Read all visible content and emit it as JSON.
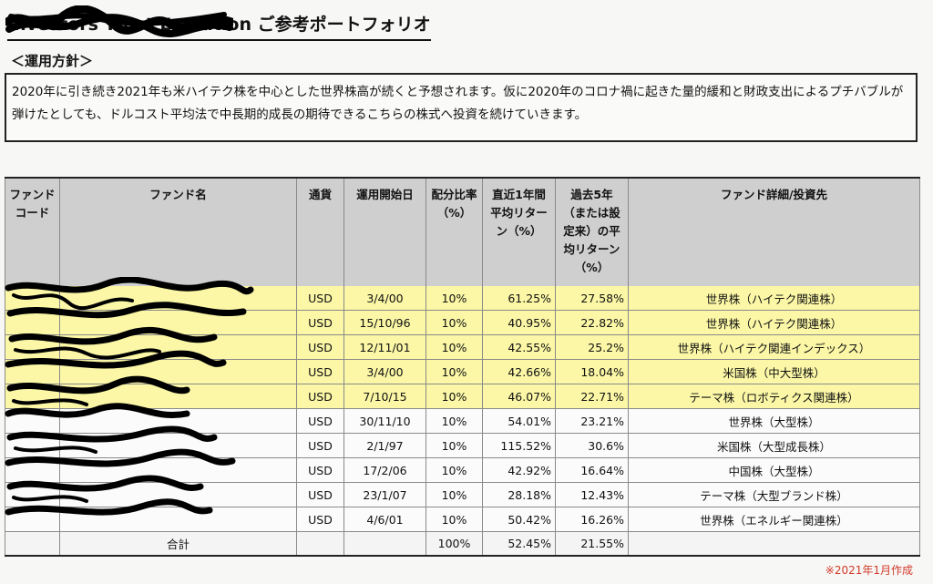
{
  "header": {
    "title": "Investors Trust Evolution ご参考ポートフォリオ"
  },
  "policy": {
    "label": "＜運用方針＞",
    "text": "2020年に引き続き2021年も米ハイテク株を中心とした世界株高が続くと予想されます。仮に2020年のコロナ禍に起きた量的緩和と財政支出によるプチバブルが弾けたとしても、ドルコスト平均法で中長期的成長の期待できるこちらの株式へ投資を続けていきます。"
  },
  "table": {
    "headers": {
      "code": "ファンドコード",
      "name": "ファンド名",
      "currency": "通貨",
      "start": "運用開始日",
      "alloc": "配分比率（%）",
      "ret1y": "直近1年間平均リターン（%）",
      "ret5y": "過去5年（または設定来）の平均リターン（%）",
      "detail": "ファンド詳細/投資先"
    },
    "rows": [
      {
        "currency": "USD",
        "start": "3/4/00",
        "alloc": "10%",
        "ret1y": "61.25%",
        "ret5y": "27.58%",
        "detail": "世界株（ハイテク関連株）"
      },
      {
        "currency": "USD",
        "start": "15/10/96",
        "alloc": "10%",
        "ret1y": "40.95%",
        "ret5y": "22.82%",
        "detail": "世界株（ハイテク関連株）"
      },
      {
        "currency": "USD",
        "start": "12/11/01",
        "alloc": "10%",
        "ret1y": "42.55%",
        "ret5y": "25.2%",
        "detail": "世界株（ハイテク関連インデックス）"
      },
      {
        "currency": "USD",
        "start": "3/4/00",
        "alloc": "10%",
        "ret1y": "42.66%",
        "ret5y": "18.04%",
        "detail": "米国株（中大型株）"
      },
      {
        "currency": "USD",
        "start": "7/10/15",
        "alloc": "10%",
        "ret1y": "46.07%",
        "ret5y": "22.71%",
        "detail": "テーマ株（ロボティクス関連株）"
      },
      {
        "currency": "USD",
        "start": "30/11/10",
        "alloc": "10%",
        "ret1y": "54.01%",
        "ret5y": "23.21%",
        "detail": "世界株（大型株）"
      },
      {
        "currency": "USD",
        "start": "2/1/97",
        "alloc": "10%",
        "ret1y": "115.52%",
        "ret5y": "30.6%",
        "detail": "米国株（大型成長株）"
      },
      {
        "currency": "USD",
        "start": "17/2/06",
        "alloc": "10%",
        "ret1y": "42.92%",
        "ret5y": "16.64%",
        "detail": "中国株（大型株）"
      },
      {
        "currency": "USD",
        "start": "23/1/07",
        "alloc": "10%",
        "ret1y": "28.18%",
        "ret5y": "12.43%",
        "detail": "テーマ株（大型ブランド株）"
      },
      {
        "currency": "USD",
        "start": "4/6/01",
        "alloc": "10%",
        "ret1y": "50.42%",
        "ret5y": "16.26%",
        "detail": "世界株（エネルギー関連株）"
      }
    ],
    "highlighted_rows": 5,
    "total": {
      "label": "合計",
      "alloc": "100%",
      "ret1y": "52.45%",
      "ret5y": "21.55%"
    }
  },
  "footnote": "※2021年1月作成",
  "colors": {
    "highlight": "#fbf7a6",
    "header_bg": "#cfcfcf",
    "footnote": "#d23a2a"
  }
}
